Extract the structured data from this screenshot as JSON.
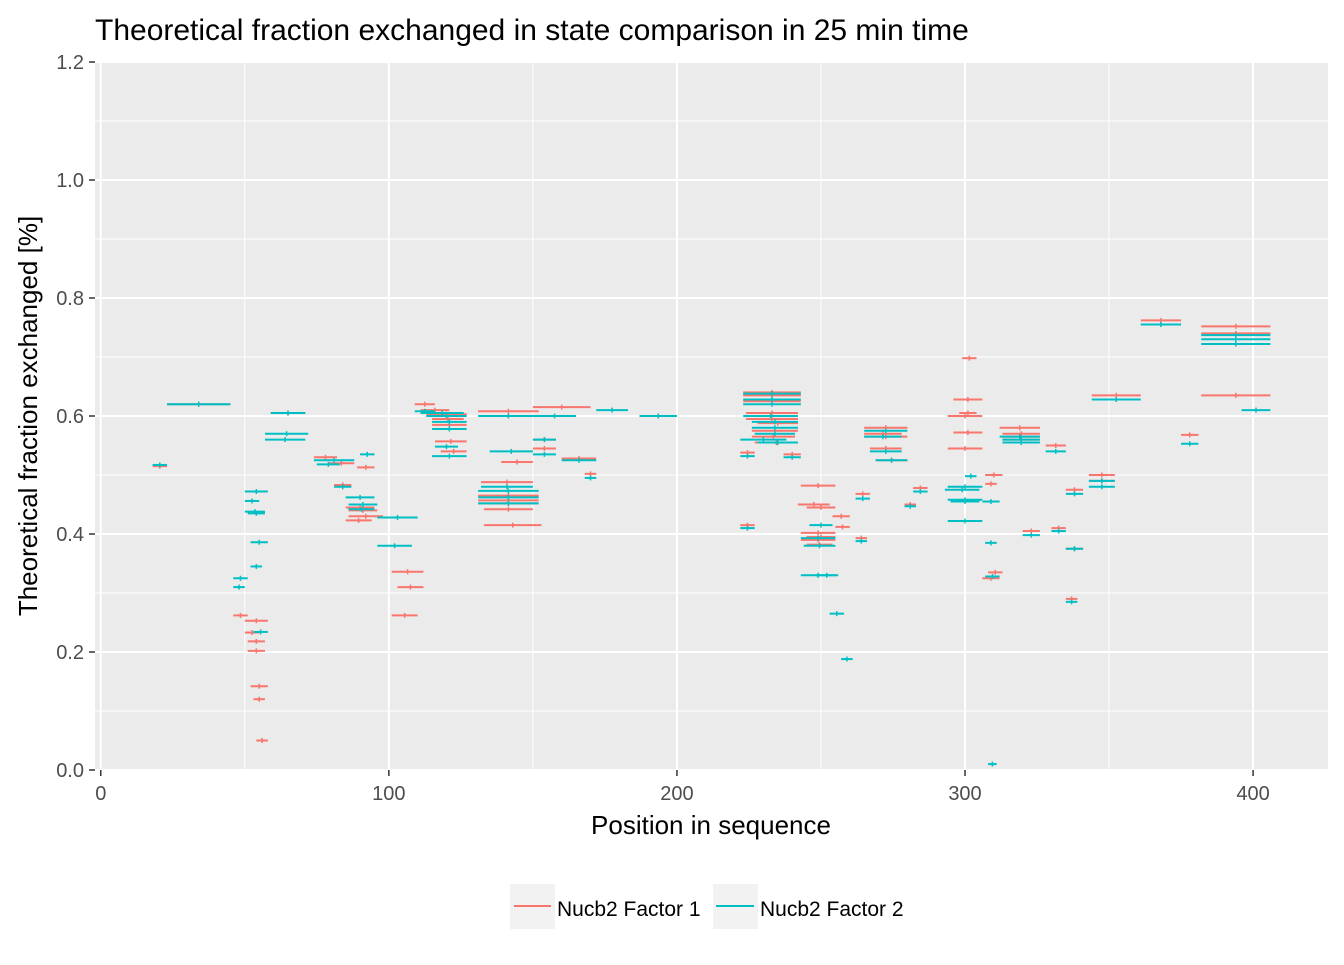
{
  "chart_data": {
    "type": "scatter",
    "title": "Theoretical fraction exchanged in state comparison in 25 min time",
    "xlabel": "Position in sequence",
    "ylabel": "Theoretical fraction exchanged [%]",
    "xlim": [
      -2,
      426
    ],
    "ylim": [
      0,
      1.2
    ],
    "x_ticks": [
      0,
      100,
      200,
      300,
      400
    ],
    "y_ticks": [
      0.0,
      0.2,
      0.4,
      0.6,
      0.8,
      1.0,
      1.2
    ],
    "x_tick_labels": [
      "0",
      "100",
      "200",
      "300",
      "400"
    ],
    "y_tick_labels": [
      "0.0",
      "0.2",
      "0.4",
      "0.6",
      "0.8",
      "1.0",
      "1.2"
    ],
    "grid": true,
    "legend_position": "bottom",
    "series": [
      {
        "name": "Nucb2 Factor 1",
        "color": "#F8766D",
        "segments": [
          [
            18,
            23,
            0.515
          ],
          [
            23,
            45,
            0.62
          ],
          [
            59,
            71,
            0.605
          ],
          [
            74,
            82,
            0.53
          ],
          [
            79,
            88,
            0.52
          ],
          [
            81,
            87,
            0.483
          ],
          [
            85,
            95,
            0.445
          ],
          [
            86,
            96,
            0.44
          ],
          [
            86,
            98,
            0.43
          ],
          [
            85,
            94,
            0.423
          ],
          [
            89,
            95,
            0.513
          ],
          [
            46,
            51,
            0.262
          ],
          [
            50,
            58,
            0.253
          ],
          [
            50,
            55,
            0.233
          ],
          [
            51,
            57,
            0.218
          ],
          [
            51,
            57,
            0.202
          ],
          [
            52,
            58,
            0.142
          ],
          [
            53,
            57,
            0.12
          ],
          [
            54,
            58,
            0.05
          ],
          [
            101,
            112,
            0.336
          ],
          [
            101,
            110,
            0.262
          ],
          [
            103,
            112,
            0.31
          ],
          [
            109,
            116,
            0.62
          ],
          [
            111,
            121,
            0.61
          ],
          [
            113,
            127,
            0.603
          ],
          [
            115,
            126,
            0.595
          ],
          [
            115,
            127,
            0.585
          ],
          [
            116,
            127,
            0.557
          ],
          [
            118,
            127,
            0.54
          ],
          [
            131,
            152,
            0.608
          ],
          [
            132,
            150,
            0.488
          ],
          [
            131,
            152,
            0.465
          ],
          [
            131,
            152,
            0.457
          ],
          [
            131,
            152,
            0.452
          ],
          [
            133,
            150,
            0.442
          ],
          [
            133,
            153,
            0.415
          ],
          [
            139,
            150,
            0.522
          ],
          [
            150,
            158,
            0.545
          ],
          [
            150,
            158,
            0.56
          ],
          [
            150,
            170,
            0.615
          ],
          [
            160,
            172,
            0.528
          ],
          [
            168,
            172,
            0.502
          ],
          [
            187,
            200,
            0.6
          ],
          [
            222,
            227,
            0.538
          ],
          [
            222,
            227,
            0.415
          ],
          [
            223,
            243,
            0.64
          ],
          [
            223,
            243,
            0.635
          ],
          [
            223,
            243,
            0.625
          ],
          [
            224,
            242,
            0.605
          ],
          [
            224,
            242,
            0.595
          ],
          [
            226,
            242,
            0.575
          ],
          [
            226,
            241,
            0.565
          ],
          [
            227,
            242,
            0.555
          ],
          [
            228,
            242,
            0.588
          ],
          [
            237,
            243,
            0.535
          ],
          [
            243,
            255,
            0.482
          ],
          [
            242,
            253,
            0.45
          ],
          [
            245,
            255,
            0.445
          ],
          [
            243,
            255,
            0.402
          ],
          [
            245,
            255,
            0.395
          ],
          [
            243,
            255,
            0.39
          ],
          [
            245,
            254,
            0.382
          ],
          [
            254,
            260,
            0.43
          ],
          [
            255,
            260,
            0.412
          ],
          [
            262,
            267,
            0.468
          ],
          [
            262,
            266,
            0.393
          ],
          [
            265,
            280,
            0.58
          ],
          [
            265,
            278,
            0.57
          ],
          [
            265,
            280,
            0.565
          ],
          [
            267,
            278,
            0.545
          ],
          [
            269,
            280,
            0.525
          ],
          [
            279,
            283,
            0.45
          ],
          [
            282,
            287,
            0.478
          ],
          [
            294,
            306,
            0.6
          ],
          [
            294,
            306,
            0.545
          ],
          [
            296,
            306,
            0.628
          ],
          [
            296,
            306,
            0.572
          ],
          [
            298,
            304,
            0.605
          ],
          [
            299,
            304,
            0.698
          ],
          [
            307,
            313,
            0.5
          ],
          [
            307,
            311,
            0.485
          ],
          [
            308,
            313,
            0.335
          ],
          [
            306,
            312,
            0.325
          ],
          [
            312,
            326,
            0.58
          ],
          [
            313,
            326,
            0.57
          ],
          [
            313,
            326,
            0.565
          ],
          [
            313,
            326,
            0.56
          ],
          [
            320,
            326,
            0.405
          ],
          [
            328,
            335,
            0.55
          ],
          [
            330,
            335,
            0.41
          ],
          [
            335,
            341,
            0.475
          ],
          [
            335,
            341,
            0.375
          ],
          [
            335,
            339,
            0.29
          ],
          [
            343,
            352,
            0.5
          ],
          [
            343,
            352,
            0.49
          ],
          [
            344,
            361,
            0.635
          ],
          [
            361,
            375,
            0.762
          ],
          [
            375,
            381,
            0.568
          ],
          [
            382,
            406,
            0.752
          ],
          [
            382,
            406,
            0.74
          ],
          [
            382,
            406,
            0.635
          ]
        ]
      },
      {
        "name": "Nucb2 Factor 2",
        "color": "#00BFC4",
        "segments": [
          [
            18,
            23,
            0.517
          ],
          [
            23,
            45,
            0.62
          ],
          [
            59,
            71,
            0.605
          ],
          [
            57,
            72,
            0.57
          ],
          [
            57,
            71,
            0.56
          ],
          [
            74,
            88,
            0.525
          ],
          [
            75,
            83,
            0.518
          ],
          [
            81,
            87,
            0.48
          ],
          [
            85,
            95,
            0.462
          ],
          [
            86,
            96,
            0.45
          ],
          [
            86,
            95,
            0.442
          ],
          [
            90,
            95,
            0.535
          ],
          [
            46,
            51,
            0.325
          ],
          [
            46,
            50,
            0.31
          ],
          [
            50,
            58,
            0.472
          ],
          [
            50,
            55,
            0.456
          ],
          [
            50,
            57,
            0.438
          ],
          [
            51,
            57,
            0.435
          ],
          [
            52,
            58,
            0.386
          ],
          [
            52,
            56,
            0.345
          ],
          [
            53,
            58,
            0.234
          ],
          [
            96,
            110,
            0.428
          ],
          [
            96,
            108,
            0.38
          ],
          [
            109,
            116,
            0.608
          ],
          [
            111,
            126,
            0.605
          ],
          [
            113,
            127,
            0.6
          ],
          [
            115,
            127,
            0.59
          ],
          [
            115,
            127,
            0.578
          ],
          [
            116,
            124,
            0.548
          ],
          [
            115,
            127,
            0.532
          ],
          [
            131,
            152,
            0.6
          ],
          [
            132,
            150,
            0.48
          ],
          [
            131,
            152,
            0.473
          ],
          [
            131,
            152,
            0.462
          ],
          [
            131,
            152,
            0.452
          ],
          [
            135,
            150,
            0.54
          ],
          [
            150,
            158,
            0.56
          ],
          [
            150,
            158,
            0.535
          ],
          [
            150,
            165,
            0.6
          ],
          [
            160,
            172,
            0.525
          ],
          [
            168,
            172,
            0.495
          ],
          [
            172,
            183,
            0.61
          ],
          [
            187,
            200,
            0.6
          ],
          [
            222,
            227,
            0.532
          ],
          [
            222,
            227,
            0.41
          ],
          [
            223,
            243,
            0.638
          ],
          [
            223,
            243,
            0.628
          ],
          [
            223,
            243,
            0.62
          ],
          [
            223,
            242,
            0.6
          ],
          [
            226,
            242,
            0.59
          ],
          [
            226,
            242,
            0.58
          ],
          [
            227,
            241,
            0.57
          ],
          [
            228,
            242,
            0.555
          ],
          [
            222,
            238,
            0.56
          ],
          [
            237,
            243,
            0.53
          ],
          [
            243,
            255,
            0.393
          ],
          [
            244,
            255,
            0.38
          ],
          [
            246,
            254,
            0.415
          ],
          [
            243,
            255,
            0.33
          ],
          [
            248,
            256,
            0.33
          ],
          [
            253,
            258,
            0.265
          ],
          [
            257,
            261,
            0.188
          ],
          [
            262,
            267,
            0.46
          ],
          [
            262,
            266,
            0.388
          ],
          [
            265,
            280,
            0.575
          ],
          [
            265,
            278,
            0.565
          ],
          [
            267,
            278,
            0.54
          ],
          [
            269,
            280,
            0.525
          ],
          [
            279,
            283,
            0.447
          ],
          [
            282,
            287,
            0.472
          ],
          [
            293,
            305,
            0.475
          ],
          [
            294,
            306,
            0.48
          ],
          [
            294,
            306,
            0.458
          ],
          [
            295,
            305,
            0.455
          ],
          [
            294,
            306,
            0.422
          ],
          [
            300,
            304,
            0.498
          ],
          [
            306,
            312,
            0.455
          ],
          [
            307,
            311,
            0.385
          ],
          [
            307,
            312,
            0.328
          ],
          [
            308,
            311,
            0.01
          ],
          [
            312,
            326,
            0.565
          ],
          [
            313,
            326,
            0.56
          ],
          [
            313,
            326,
            0.555
          ],
          [
            320,
            326,
            0.398
          ],
          [
            328,
            335,
            0.54
          ],
          [
            330,
            335,
            0.405
          ],
          [
            335,
            341,
            0.468
          ],
          [
            335,
            341,
            0.375
          ],
          [
            335,
            339,
            0.285
          ],
          [
            343,
            352,
            0.49
          ],
          [
            343,
            352,
            0.48
          ],
          [
            344,
            361,
            0.628
          ],
          [
            361,
            375,
            0.755
          ],
          [
            375,
            381,
            0.553
          ],
          [
            382,
            406,
            0.737
          ],
          [
            382,
            406,
            0.73
          ],
          [
            382,
            406,
            0.722
          ],
          [
            396,
            406,
            0.61
          ]
        ]
      }
    ]
  }
}
